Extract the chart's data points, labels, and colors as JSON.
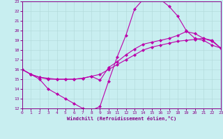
{
  "xlabel": "Windchill (Refroidissement éolien,°C)",
  "xlim": [
    0,
    23
  ],
  "ylim": [
    12,
    23
  ],
  "yticks": [
    12,
    13,
    14,
    15,
    16,
    17,
    18,
    19,
    20,
    21,
    22,
    23
  ],
  "xticks": [
    0,
    1,
    2,
    3,
    4,
    5,
    6,
    7,
    8,
    9,
    10,
    11,
    12,
    13,
    14,
    15,
    16,
    17,
    18,
    19,
    20,
    21,
    22,
    23
  ],
  "bg_color": "#c8eef0",
  "line_color": "#bb00aa",
  "line1_x": [
    0,
    1,
    2,
    3,
    4,
    5,
    6,
    7,
    8,
    9,
    10,
    11,
    12,
    13,
    14,
    15,
    16,
    17,
    18,
    19,
    20,
    21,
    22,
    23
  ],
  "line1_y": [
    16.0,
    15.5,
    15.0,
    14.0,
    13.5,
    13.0,
    12.5,
    12.0,
    11.8,
    12.2,
    14.8,
    17.3,
    19.5,
    22.2,
    23.2,
    23.3,
    23.2,
    22.5,
    21.5,
    20.0,
    19.2,
    19.0,
    18.5,
    18.2
  ],
  "line2_x": [
    0,
    1,
    2,
    3,
    4,
    5,
    6,
    7,
    8,
    9,
    10,
    11,
    12,
    13,
    14,
    15,
    16,
    17,
    18,
    19,
    20,
    21,
    22,
    23
  ],
  "line2_y": [
    16.0,
    15.5,
    15.2,
    15.1,
    15.0,
    15.0,
    15.0,
    15.1,
    15.3,
    14.9,
    16.2,
    16.8,
    17.5,
    18.1,
    18.6,
    18.8,
    19.0,
    19.2,
    19.5,
    19.9,
    19.7,
    19.2,
    18.9,
    18.2
  ],
  "line3_x": [
    0,
    1,
    2,
    3,
    4,
    5,
    6,
    7,
    8,
    9,
    10,
    11,
    12,
    13,
    14,
    15,
    16,
    17,
    18,
    19,
    20,
    21,
    22,
    23
  ],
  "line3_y": [
    16.0,
    15.5,
    15.2,
    15.0,
    15.0,
    15.0,
    15.0,
    15.1,
    15.3,
    15.5,
    16.0,
    16.5,
    17.0,
    17.5,
    18.0,
    18.3,
    18.5,
    18.7,
    18.9,
    19.0,
    19.1,
    19.2,
    19.0,
    18.2
  ]
}
